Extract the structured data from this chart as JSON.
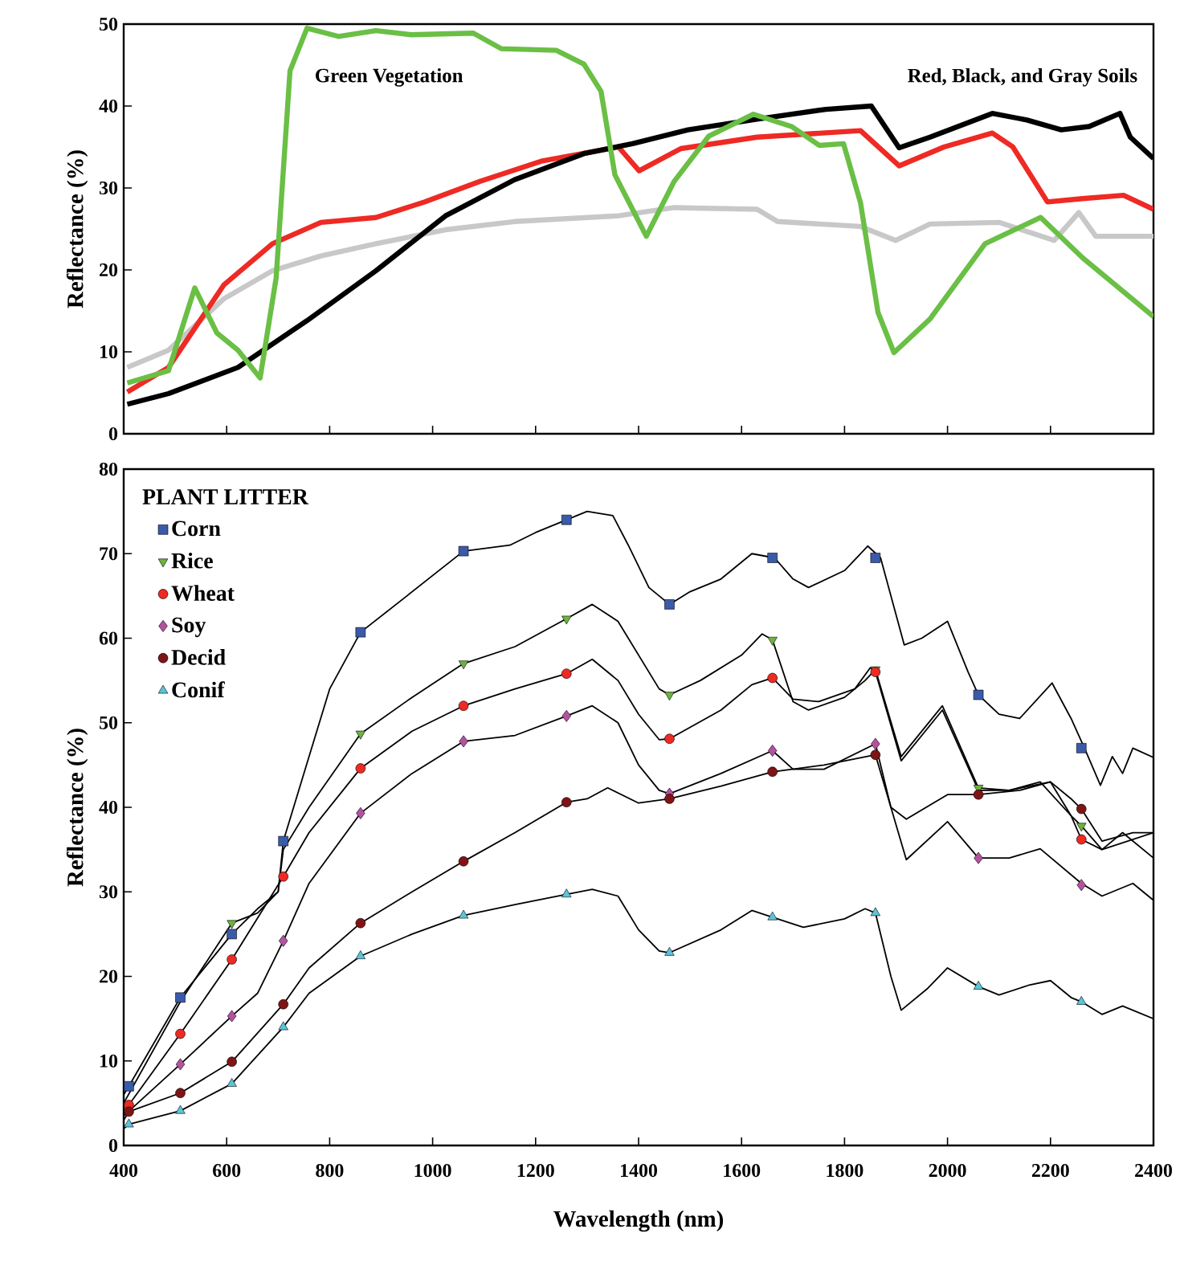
{
  "chart_data": [
    {
      "type": "line",
      "ylabel": "Reflectance (%)",
      "xlim": [
        400,
        2400
      ],
      "xticks": [
        400,
        600,
        800,
        1000,
        1200,
        1400,
        1600,
        1800,
        2000,
        2200,
        2400
      ],
      "ylim": [
        0,
        50
      ],
      "yticks": [
        0,
        10,
        20,
        30,
        40,
        50
      ],
      "tick_labels": "y",
      "annotations": [
        "Green Vegetation",
        "Red, Black, and Gray Soils"
      ],
      "series": [
        {
          "color": "#c8c8c8",
          "x": [
            407,
            487,
            595,
            689,
            783,
            890,
            1025,
            1159,
            1361,
            1469,
            1630,
            1670,
            1831,
            1899,
            1966,
            2100,
            2207,
            2255,
            2288,
            2400
          ],
          "values": [
            8.1,
            10.2,
            16.5,
            19.9,
            21.7,
            23.2,
            24.9,
            25.9,
            26.6,
            27.6,
            27.4,
            25.9,
            25.3,
            23.6,
            25.6,
            25.8,
            23.6,
            27,
            24.1,
            24.1
          ]
        },
        {
          "color": "#ee2a24",
          "x": [
            407,
            487,
            595,
            689,
            783,
            890,
            985,
            1092,
            1213,
            1361,
            1401,
            1482,
            1630,
            1831,
            1906,
            1993,
            2087,
            2127,
            2194,
            2262,
            2342,
            2400
          ],
          "values": [
            5.1,
            8.1,
            18.2,
            23.2,
            25.8,
            26.4,
            28.3,
            30.8,
            33.3,
            35,
            32.1,
            34.8,
            36.2,
            37,
            32.7,
            35,
            36.7,
            35,
            28.3,
            28.7,
            29.1,
            27.4
          ]
        },
        {
          "color": "#000000",
          "x": [
            407,
            487,
            622,
            756,
            890,
            1025,
            1159,
            1294,
            1388,
            1496,
            1630,
            1764,
            1852,
            1906,
            1966,
            2087,
            2154,
            2221,
            2275,
            2335,
            2355,
            2400
          ],
          "values": [
            3.6,
            4.9,
            8.1,
            13.8,
            19.9,
            26.6,
            31,
            34.2,
            35.4,
            37.1,
            38.4,
            39.6,
            40,
            34.9,
            36.2,
            39.1,
            38.3,
            37.1,
            37.5,
            39.1,
            36.2,
            33.6
          ]
        },
        {
          "color": "#6abf45",
          "x": [
            407,
            487,
            538,
            581,
            622,
            665,
            696,
            723,
            756,
            817,
            890,
            958,
            1079,
            1133,
            1240,
            1294,
            1327,
            1354,
            1415,
            1469,
            1536,
            1623,
            1697,
            1751,
            1798,
            1831,
            1865,
            1896,
            1966,
            2073,
            2181,
            2262,
            2400
          ],
          "values": [
            6.2,
            7.7,
            17.8,
            12.3,
            10.2,
            6.8,
            19,
            44.3,
            49.5,
            48.5,
            49.2,
            48.7,
            48.9,
            47,
            46.8,
            45.1,
            41.8,
            31.6,
            24.1,
            30.8,
            36.3,
            39,
            37.5,
            35.2,
            35.4,
            28.2,
            14.8,
            9.9,
            14,
            23.2,
            26.4,
            21.5,
            14.3
          ]
        }
      ]
    },
    {
      "type": "line",
      "xlabel": "Wavelength (nm)",
      "ylabel": "Reflectance (%)",
      "xlim": [
        400,
        2400
      ],
      "xticks": [
        400,
        600,
        800,
        1000,
        1200,
        1400,
        1600,
        1800,
        2000,
        2200,
        2400
      ],
      "ylim": [
        0,
        80
      ],
      "yticks": [
        0,
        10,
        20,
        30,
        40,
        50,
        60,
        70,
        80
      ],
      "legend": "top left",
      "legend_title": "PLANT LITTER",
      "series": [
        {
          "color": "#000000",
          "x": [
            400,
            410,
            510,
            610,
            660,
            700,
            710,
            760,
            800,
            860,
            950,
            1060,
            1150,
            1200,
            1260,
            1300,
            1350,
            1380,
            1420,
            1460,
            1500,
            1560,
            1620,
            1664,
            1700,
            1730,
            1800,
            1845,
            1870,
            1916,
            1950,
            2000,
            2040,
            2060,
            2100,
            2140,
            2203,
            2240,
            2266,
            2297,
            2320,
            2340,
            2360,
            2400
          ],
          "values": [
            6,
            7,
            17.5,
            25,
            28,
            30,
            36,
            46,
            54,
            60.7,
            65,
            70.3,
            71,
            72.5,
            74,
            75,
            74.5,
            71,
            66,
            64,
            65.5,
            67,
            70,
            69.5,
            67,
            66,
            68,
            70.9,
            69.5,
            59.2,
            60,
            62,
            56,
            53.3,
            51,
            50.5,
            54.7,
            50.5,
            47,
            42.6,
            46,
            44,
            47,
            45.9
          ]
        },
        {
          "color": "#000000",
          "x": [
            400,
            510,
            610,
            660,
            700,
            710,
            760,
            860,
            960,
            1060,
            1160,
            1260,
            1310,
            1360,
            1400,
            1440,
            1460,
            1520,
            1600,
            1640,
            1660,
            1700,
            1730,
            1800,
            1840,
            1860,
            1910,
            1990,
            2060,
            2120,
            2180,
            2240,
            2260,
            2300,
            2340,
            2400
          ],
          "values": [
            5,
            17,
            26.3,
            27.5,
            30,
            35,
            40,
            48.7,
            53,
            57,
            59,
            62.3,
            64,
            62,
            58,
            54,
            53.3,
            55,
            58,
            60.5,
            59.8,
            52.5,
            51.5,
            53,
            55,
            56.3,
            46,
            52,
            42.3,
            42,
            43,
            39,
            37.8,
            35,
            37,
            34
          ]
        },
        {
          "color": "#000000",
          "x": [
            400,
            410,
            510,
            610,
            710,
            760,
            860,
            960,
            1060,
            1160,
            1260,
            1310,
            1360,
            1400,
            1440,
            1460,
            1560,
            1620,
            1660,
            1700,
            1750,
            1820,
            1850,
            1860,
            1910,
            1990,
            2060,
            2120,
            2200,
            2240,
            2260,
            2300,
            2400
          ],
          "values": [
            4,
            4.8,
            13.2,
            22,
            31.8,
            37,
            44.6,
            49,
            52,
            54,
            55.8,
            57.5,
            55,
            51,
            48,
            48.1,
            51.5,
            54.5,
            55.3,
            52.8,
            52.5,
            54,
            56.5,
            56,
            45.5,
            51.5,
            42,
            42,
            43,
            39,
            36.2,
            35,
            37
          ]
        },
        {
          "color": "#000000",
          "x": [
            400,
            510,
            610,
            660,
            710,
            760,
            860,
            960,
            1060,
            1160,
            1260,
            1310,
            1360,
            1400,
            1440,
            1460,
            1560,
            1660,
            1700,
            1760,
            1860,
            1890,
            1920,
            2000,
            2060,
            2120,
            2180,
            2260,
            2300,
            2360,
            2400
          ],
          "values": [
            3.5,
            9.6,
            15.3,
            18,
            24.2,
            31,
            39.3,
            44,
            47.8,
            48.5,
            50.8,
            52,
            50,
            45,
            42,
            41.6,
            44,
            46.7,
            44.5,
            44.5,
            47.5,
            40,
            33.8,
            38.3,
            34,
            34,
            35.1,
            31,
            29.5,
            31,
            29
          ]
        },
        {
          "color": "#000000",
          "x": [
            400,
            410,
            510,
            610,
            710,
            760,
            860,
            960,
            1060,
            1160,
            1260,
            1300,
            1340,
            1400,
            1460,
            1560,
            1660,
            1760,
            1860,
            1890,
            1920,
            2000,
            2060,
            2140,
            2200,
            2240,
            2260,
            2300,
            2360,
            2400
          ],
          "values": [
            3,
            4,
            6.2,
            9.9,
            16.7,
            21,
            26.3,
            30,
            33.6,
            37,
            40.6,
            41,
            42.3,
            40.5,
            41,
            42.5,
            44.2,
            45,
            46.2,
            40,
            38.6,
            41.5,
            41.5,
            42,
            43,
            41,
            39.8,
            36,
            37,
            37
          ]
        },
        {
          "color": "#000000",
          "x": [
            400,
            410,
            510,
            610,
            710,
            760,
            860,
            960,
            1060,
            1160,
            1260,
            1310,
            1360,
            1400,
            1440,
            1460,
            1560,
            1620,
            1660,
            1720,
            1800,
            1840,
            1860,
            1890,
            1910,
            1960,
            2000,
            2060,
            2100,
            2160,
            2200,
            2240,
            2260,
            2300,
            2340,
            2400
          ],
          "values": [
            2,
            2.5,
            4.1,
            7.3,
            14,
            18,
            22.4,
            25,
            27.2,
            28.5,
            29.7,
            30.3,
            29.5,
            25.5,
            23,
            22.8,
            25.5,
            27.8,
            27,
            25.8,
            26.8,
            28,
            27.5,
            20,
            16,
            18.5,
            21,
            18.8,
            17.8,
            19,
            19.5,
            17.5,
            17,
            15.5,
            16.5,
            15
          ]
        },
        {
          "type": "scatter",
          "name": "Corn",
          "color": "#3a5baa",
          "marker": "square",
          "x": [
            410,
            510,
            610,
            710,
            860,
            1060,
            1260,
            1460,
            1660,
            1860,
            2060,
            2260
          ],
          "values": [
            7,
            17.5,
            25,
            36,
            60.7,
            70.3,
            74,
            64,
            69.5,
            69.5,
            53.3,
            47
          ]
        },
        {
          "type": "scatter",
          "name": "Rice",
          "color": "#6cb33f",
          "marker": "triangle-down",
          "x": [
            610,
            860,
            1060,
            1260,
            1460,
            1660,
            1860,
            2060,
            2260
          ],
          "values": [
            26.3,
            48.7,
            57,
            62.3,
            53.3,
            59.8,
            56.3,
            42.3,
            37.8
          ]
        },
        {
          "type": "scatter",
          "name": "Wheat",
          "color": "#ee2a24",
          "marker": "circle",
          "x": [
            410,
            510,
            610,
            710,
            860,
            1060,
            1260,
            1460,
            1660,
            1860,
            2260
          ],
          "values": [
            4.8,
            13.2,
            22,
            31.8,
            44.6,
            52,
            55.8,
            48.1,
            55.3,
            56,
            36.2
          ]
        },
        {
          "type": "scatter",
          "name": "Soy",
          "color": "#b452a0",
          "marker": "diamond",
          "x": [
            510,
            610,
            710,
            860,
            1060,
            1260,
            1460,
            1660,
            1860,
            2060,
            2260
          ],
          "values": [
            9.6,
            15.3,
            24.2,
            39.3,
            47.8,
            50.8,
            41.6,
            46.7,
            47.5,
            34,
            30.8
          ]
        },
        {
          "type": "scatter",
          "name": "Decid",
          "color": "#7f1416",
          "marker": "circle",
          "x": [
            410,
            510,
            610,
            710,
            860,
            1060,
            1260,
            1460,
            1660,
            1860,
            2060,
            2260
          ],
          "values": [
            4,
            6.2,
            9.9,
            16.7,
            26.3,
            33.6,
            40.6,
            41,
            44.2,
            46.2,
            41.5,
            39.8
          ]
        },
        {
          "type": "scatter",
          "name": "Conif",
          "color": "#5bc4d9",
          "marker": "triangle",
          "x": [
            410,
            510,
            610,
            710,
            860,
            1060,
            1260,
            1460,
            1660,
            1860,
            2060,
            2260
          ],
          "values": [
            2.5,
            4.1,
            7.3,
            14,
            22.4,
            27.2,
            29.7,
            22.8,
            27,
            27.5,
            18.8,
            17
          ]
        }
      ]
    }
  ]
}
